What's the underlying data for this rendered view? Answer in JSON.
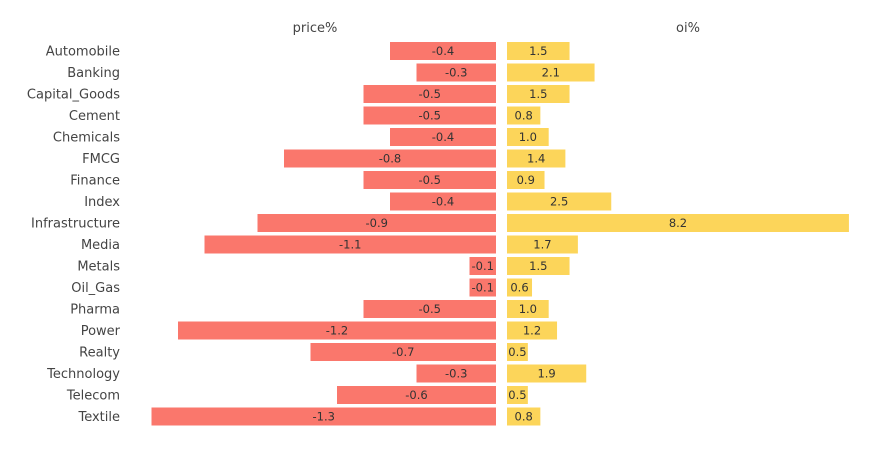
{
  "chart_data": {
    "type": "bar",
    "orientation": "horizontal",
    "layout": "back-to-back",
    "categories": [
      "Automobile",
      "Banking",
      "Capital_Goods",
      "Cement",
      "Chemicals",
      "FMCG",
      "Finance",
      "Index",
      "Infrastructure",
      "Media",
      "Metals",
      "Oil_Gas",
      "Pharma",
      "Power",
      "Realty",
      "Technology",
      "Telecom",
      "Textile"
    ],
    "series": [
      {
        "name": "price%",
        "color": "#fa776c",
        "values": [
          -0.4,
          -0.3,
          -0.5,
          -0.5,
          -0.4,
          -0.8,
          -0.5,
          -0.4,
          -0.9,
          -1.1,
          -0.1,
          -0.1,
          -0.5,
          -1.2,
          -0.7,
          -0.3,
          -0.6,
          -1.3
        ],
        "labels": [
          "-0.4",
          "-0.3",
          "-0.5",
          "-0.5",
          "-0.4",
          "-0.8",
          "-0.5",
          "-0.4",
          "-0.9",
          "-1.1",
          "-0.1",
          "-0.1",
          "-0.5",
          "-1.2",
          "-0.7",
          "-0.3",
          "-0.6",
          "-1.3"
        ]
      },
      {
        "name": "oi%",
        "color": "#fcd55a",
        "values": [
          1.5,
          2.1,
          1.5,
          0.8,
          1.0,
          1.4,
          0.9,
          2.5,
          8.2,
          1.7,
          1.5,
          0.6,
          1.0,
          1.2,
          0.5,
          1.9,
          0.5,
          0.8
        ],
        "labels": [
          "1.5",
          "2.1",
          "1.5",
          "0.8",
          "1.0",
          "1.4",
          "0.9",
          "2.5",
          "8.2",
          "1.7",
          "1.5",
          "0.6",
          "1.0",
          "1.2",
          "0.5",
          "1.9",
          "0.5",
          "0.8"
        ]
      }
    ],
    "grid": false,
    "legend": "none"
  }
}
